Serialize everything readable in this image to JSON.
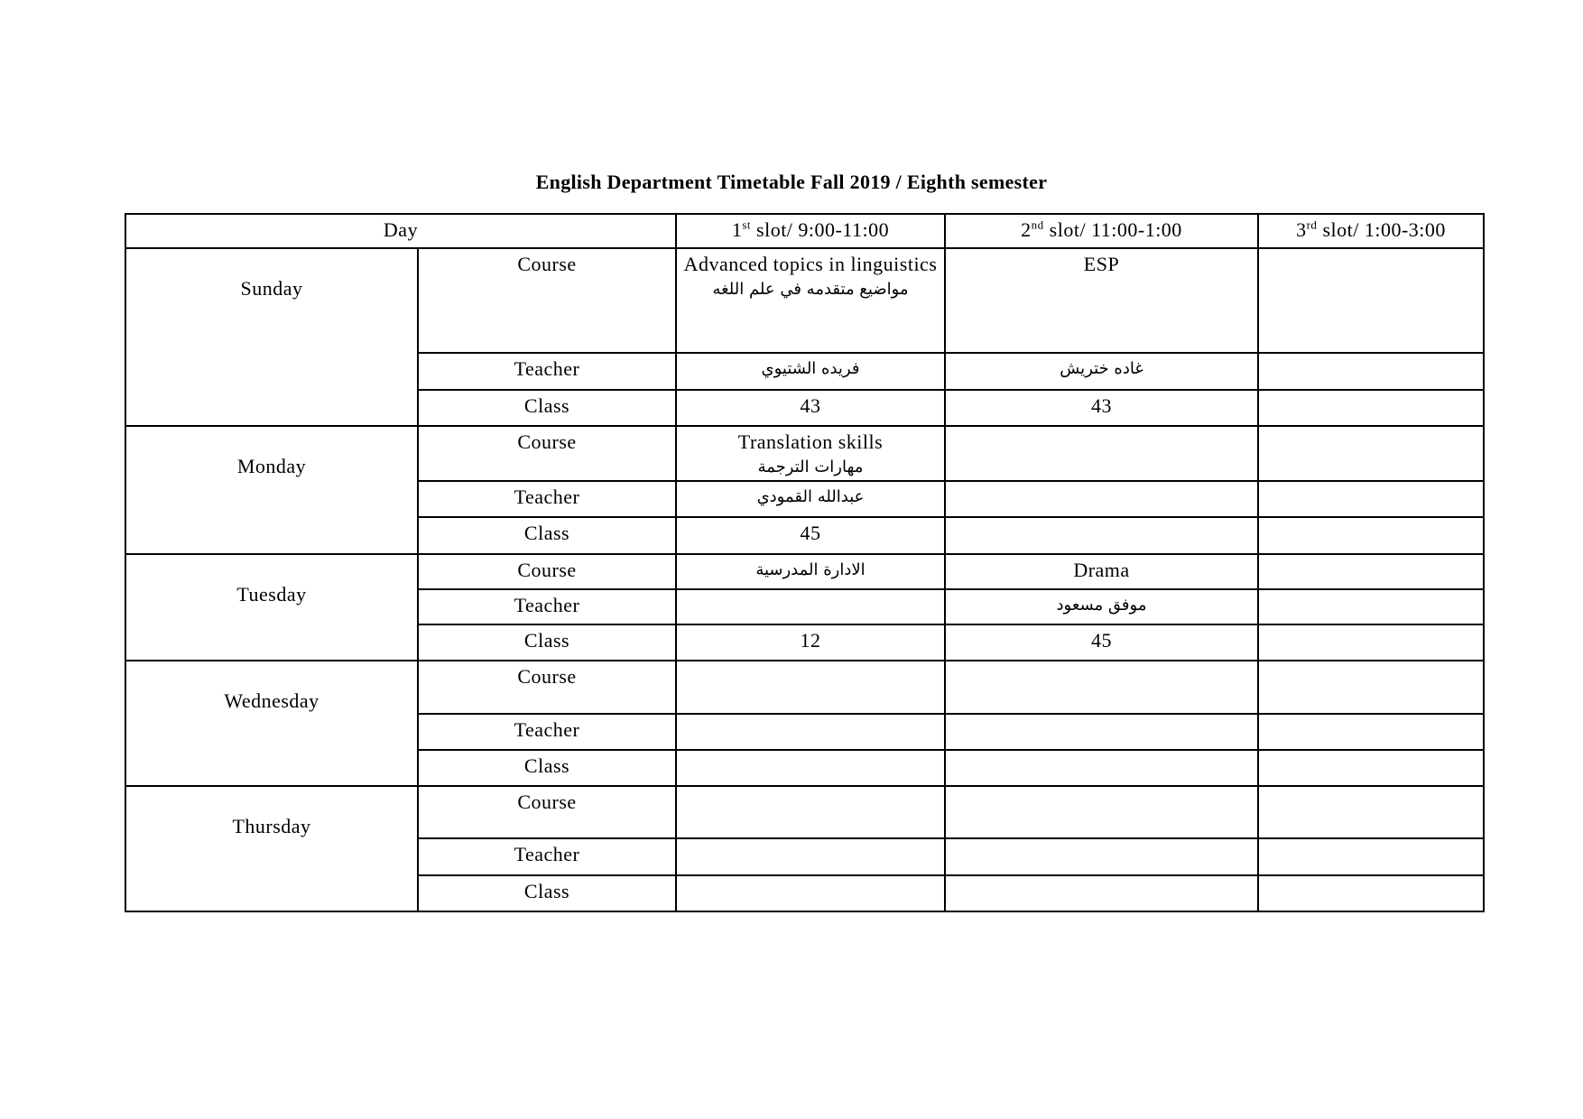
{
  "title": "English Department Timetable Fall 2019 / Eighth semester",
  "header": {
    "day": "Day",
    "slots": [
      {
        "num": "1",
        "sup": "st",
        "label": " slot/ 9:00-11:00"
      },
      {
        "num": "2",
        "sup": "nd",
        "label": " slot/ 11:00-1:00"
      },
      {
        "num": "3",
        "sup": "rd",
        "label": " slot/ 1:00-3:00"
      }
    ]
  },
  "row_labels": {
    "course": "Course",
    "teacher": "Teacher",
    "class": "Class"
  },
  "days": [
    {
      "name": "Sunday",
      "course": [
        {
          "en": "Advanced topics in linguistics",
          "ar": "مواضيع متقدمه في علم اللغه"
        },
        {
          "en": "ESP",
          "ar": ""
        },
        {
          "en": "",
          "ar": ""
        }
      ],
      "teacher": [
        "فريده الشتيوي",
        "غاده ختريش",
        ""
      ],
      "class": [
        "43",
        "43",
        ""
      ]
    },
    {
      "name": "Monday",
      "course": [
        {
          "en": "Translation skills",
          "ar": "مهارات الترجمة"
        },
        {
          "en": "",
          "ar": ""
        },
        {
          "en": "",
          "ar": ""
        }
      ],
      "teacher": [
        "عبدالله القمودي",
        "",
        ""
      ],
      "class": [
        "45",
        "",
        ""
      ]
    },
    {
      "name": "Tuesday",
      "course": [
        {
          "en": "",
          "ar": "الادارة المدرسية"
        },
        {
          "en": "Drama",
          "ar": ""
        },
        {
          "en": "",
          "ar": ""
        }
      ],
      "teacher": [
        "",
        "موفق مسعود",
        ""
      ],
      "class": [
        "12",
        "45",
        ""
      ]
    },
    {
      "name": "Wednesday",
      "course": [
        {
          "en": "",
          "ar": ""
        },
        {
          "en": "",
          "ar": ""
        },
        {
          "en": "",
          "ar": ""
        }
      ],
      "teacher": [
        "",
        "",
        ""
      ],
      "class": [
        "",
        "",
        ""
      ]
    },
    {
      "name": "Thursday",
      "course": [
        {
          "en": "",
          "ar": ""
        },
        {
          "en": "",
          "ar": ""
        },
        {
          "en": "",
          "ar": ""
        }
      ],
      "teacher": [
        "",
        "",
        ""
      ],
      "class": [
        "",
        "",
        ""
      ]
    }
  ]
}
